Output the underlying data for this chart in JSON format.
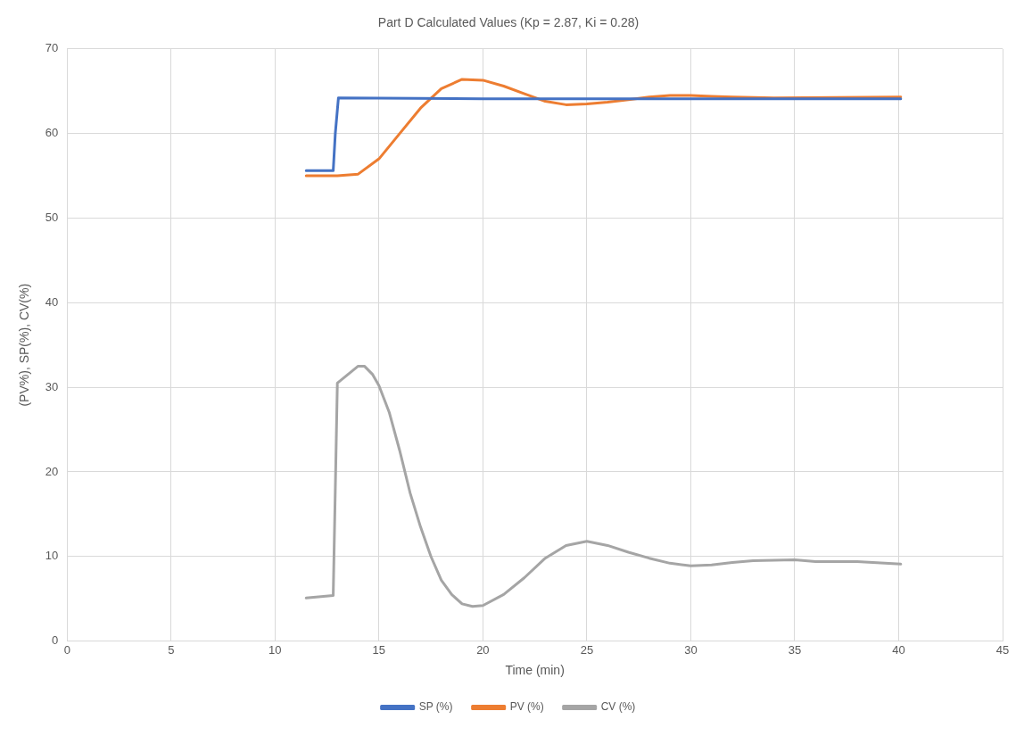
{
  "chart_data": {
    "type": "line",
    "title": "Part D Calculated Values (Kp = 2.87, Ki = 0.28)",
    "xlabel": "Time (min)",
    "ylabel": "(PV%), SP(%), CV(%)",
    "xlim": [
      0,
      45
    ],
    "xticks": [
      0,
      5,
      10,
      15,
      20,
      25,
      30,
      35,
      40,
      45
    ],
    "ylim": [
      0,
      70
    ],
    "yticks": [
      0,
      10,
      20,
      30,
      40,
      50,
      60,
      70
    ],
    "grid": true,
    "legend": "bottom",
    "marker": "none",
    "series": [
      {
        "name": "SP (%)",
        "color": "#4472c4",
        "x": [
          11.5,
          12.8,
          12.9,
          13.05,
          20,
          30,
          40.1
        ],
        "values": [
          55.6,
          55.6,
          60,
          64.2,
          64.1,
          64.1,
          64.1
        ]
      },
      {
        "name": "PV (%)",
        "color": "#ed7d31",
        "x": [
          11.5,
          13,
          14,
          15,
          16,
          17,
          18,
          19,
          20,
          21,
          22,
          23,
          24,
          25,
          26,
          27,
          28,
          29,
          30,
          31,
          32,
          34,
          40.1
        ],
        "values": [
          55.0,
          55.0,
          55.2,
          57,
          60,
          63,
          65.3,
          66.4,
          66.3,
          65.6,
          64.7,
          63.8,
          63.4,
          63.5,
          63.7,
          64.0,
          64.3,
          64.5,
          64.5,
          64.4,
          64.3,
          64.2,
          64.3
        ]
      },
      {
        "name": "CV (%)",
        "color": "#a5a5a5",
        "x": [
          11.5,
          12.8,
          13.0,
          13.5,
          14,
          14.3,
          14.7,
          15,
          15.5,
          16,
          16.5,
          17,
          17.5,
          18,
          18.5,
          19,
          19.5,
          20,
          21,
          22,
          23,
          24,
          25,
          26,
          27,
          28,
          29,
          30,
          31,
          32,
          33,
          35,
          36,
          38,
          40.1
        ],
        "values": [
          5.1,
          5.4,
          30.5,
          31.5,
          32.5,
          32.5,
          31.5,
          30.2,
          27,
          22.5,
          17.5,
          13.5,
          10,
          7.2,
          5.5,
          4.4,
          4.1,
          4.2,
          5.5,
          7.5,
          9.8,
          11.3,
          11.8,
          11.3,
          10.5,
          9.8,
          9.2,
          8.9,
          9.0,
          9.3,
          9.5,
          9.6,
          9.4,
          9.4,
          9.1
        ]
      }
    ]
  }
}
